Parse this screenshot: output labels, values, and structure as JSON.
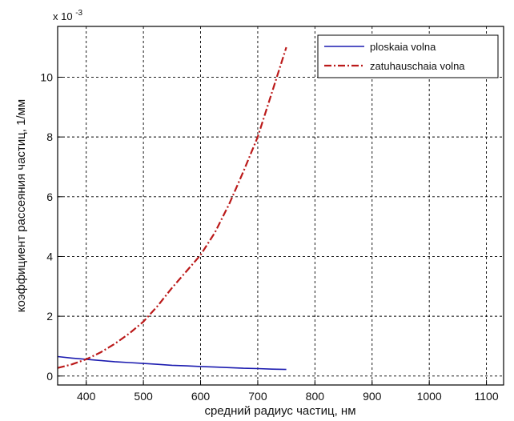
{
  "chart_data": {
    "type": "line",
    "title": "",
    "xlabel": "средний радиус частиц, нм",
    "ylabel": "коэффициент рассеяния частиц, 1/мм",
    "y_multiplier": "x 10",
    "y_exponent": "-3",
    "xlim": [
      350,
      1130
    ],
    "ylim": [
      -0.3,
      11.7
    ],
    "x_ticks": [
      400,
      500,
      600,
      700,
      800,
      900,
      1000,
      1100
    ],
    "y_ticks": [
      0,
      2,
      4,
      6,
      8,
      10
    ],
    "grid": true,
    "legend_position": "top-right",
    "series": [
      {
        "name": "ploskaia volna",
        "color": "#1c1cb0",
        "style": "solid",
        "x": [
          350,
          375,
          400,
          425,
          450,
          475,
          500,
          525,
          550,
          575,
          600,
          625,
          650,
          675,
          700,
          725,
          750
        ],
        "y": [
          0.65,
          0.6,
          0.56,
          0.52,
          0.48,
          0.45,
          0.42,
          0.39,
          0.36,
          0.34,
          0.32,
          0.3,
          0.28,
          0.26,
          0.25,
          0.23,
          0.22
        ]
      },
      {
        "name": "zatuhauschaia volna",
        "color": "#bb1a1a",
        "style": "dashdot",
        "x": [
          350,
          375,
          400,
          425,
          450,
          475,
          500,
          525,
          550,
          575,
          600,
          625,
          650,
          675,
          700,
          725,
          750
        ],
        "y": [
          0.27,
          0.39,
          0.56,
          0.79,
          1.08,
          1.42,
          1.82,
          2.35,
          2.95,
          3.5,
          4.05,
          4.8,
          5.75,
          6.85,
          8.0,
          9.5,
          11.0
        ]
      }
    ]
  }
}
